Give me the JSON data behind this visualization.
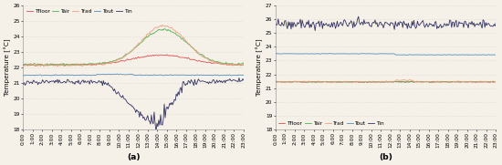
{
  "fig_width": 5.5,
  "fig_height": 1.81,
  "dpi": 100,
  "subplot_a": {
    "ylim": [
      18,
      26
    ],
    "yticks": [
      18,
      19,
      20,
      21,
      22,
      23,
      24,
      25,
      26
    ],
    "ylabel": "Temperature [°C]",
    "xlabel_label": "(a)",
    "legend_loc": "upper left",
    "series_colors": {
      "Tfloor": "#e05050",
      "Tair": "#50b050",
      "Trad": "#f0a080",
      "Tout": "#5090c0",
      "Tin": "#303060"
    }
  },
  "subplot_b": {
    "ylim": [
      18,
      27
    ],
    "yticks": [
      18,
      19,
      20,
      21,
      22,
      23,
      24,
      25,
      26,
      27
    ],
    "ylabel": "Temperature [°C]",
    "xlabel_label": "(b)",
    "legend_loc": "lower left",
    "series_colors": {
      "Tfloor": "#e05050",
      "Tair": "#50b050",
      "Trad": "#f0a080",
      "Tout": "#5090c0",
      "Tin": "#303060"
    }
  },
  "time_labels": [
    "0:00",
    "1:00",
    "2:00",
    "3:00",
    "4:00",
    "5:00",
    "6:00",
    "7:00",
    "8:00",
    "9:00",
    "10:00",
    "11:00",
    "12:00",
    "13:00",
    "14:00",
    "15:00",
    "16:00",
    "17:00",
    "18:00",
    "19:00",
    "20:00",
    "21:00",
    "22:00",
    "23:00"
  ],
  "n_points": 240,
  "tick_fontsize": 4.2,
  "label_fontsize": 5.2,
  "legend_fontsize": 4.2,
  "bg_color": "#f5f0e8",
  "grid_color": "#bbbbbb",
  "line_width": 0.6
}
